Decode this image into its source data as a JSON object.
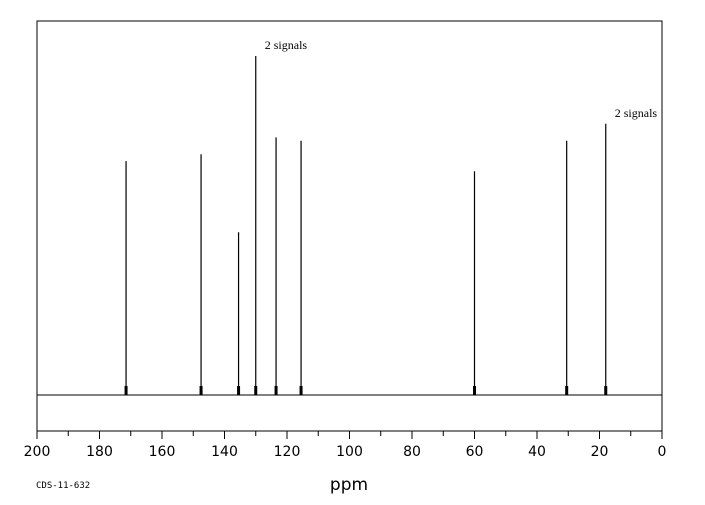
{
  "chart_data": {
    "type": "line",
    "xlabel": "ppm",
    "xlim": [
      200,
      0
    ],
    "x_ticks": [
      200,
      180,
      160,
      140,
      120,
      100,
      80,
      60,
      40,
      20,
      0
    ],
    "x_minor_step": 10,
    "grid": false,
    "ylim": [
      0,
      100
    ],
    "peaks": [
      {
        "ppm": 171.5,
        "height": 69
      },
      {
        "ppm": 147.5,
        "height": 71
      },
      {
        "ppm": 135.5,
        "height": 48
      },
      {
        "ppm": 130.0,
        "height": 100
      },
      {
        "ppm": 123.5,
        "height": 76
      },
      {
        "ppm": 115.5,
        "height": 75
      },
      {
        "ppm": 60.0,
        "height": 66
      },
      {
        "ppm": 30.5,
        "height": 75
      },
      {
        "ppm": 18.0,
        "height": 80
      }
    ],
    "annotations": [
      {
        "text": "2 signals",
        "ppm": 130.0
      },
      {
        "text": "2 signals",
        "ppm": 18.0
      }
    ],
    "code": "CDS-11-632"
  }
}
